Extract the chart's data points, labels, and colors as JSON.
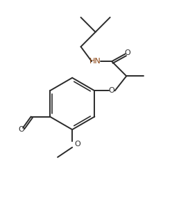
{
  "bg_color": "#ffffff",
  "line_color": "#2a2a2a",
  "hn_color": "#8B4513",
  "line_width": 1.4,
  "figsize": [
    2.48,
    2.83
  ],
  "dpi": 100,
  "xlim": [
    0,
    10
  ],
  "ylim": [
    0,
    11.4
  ]
}
